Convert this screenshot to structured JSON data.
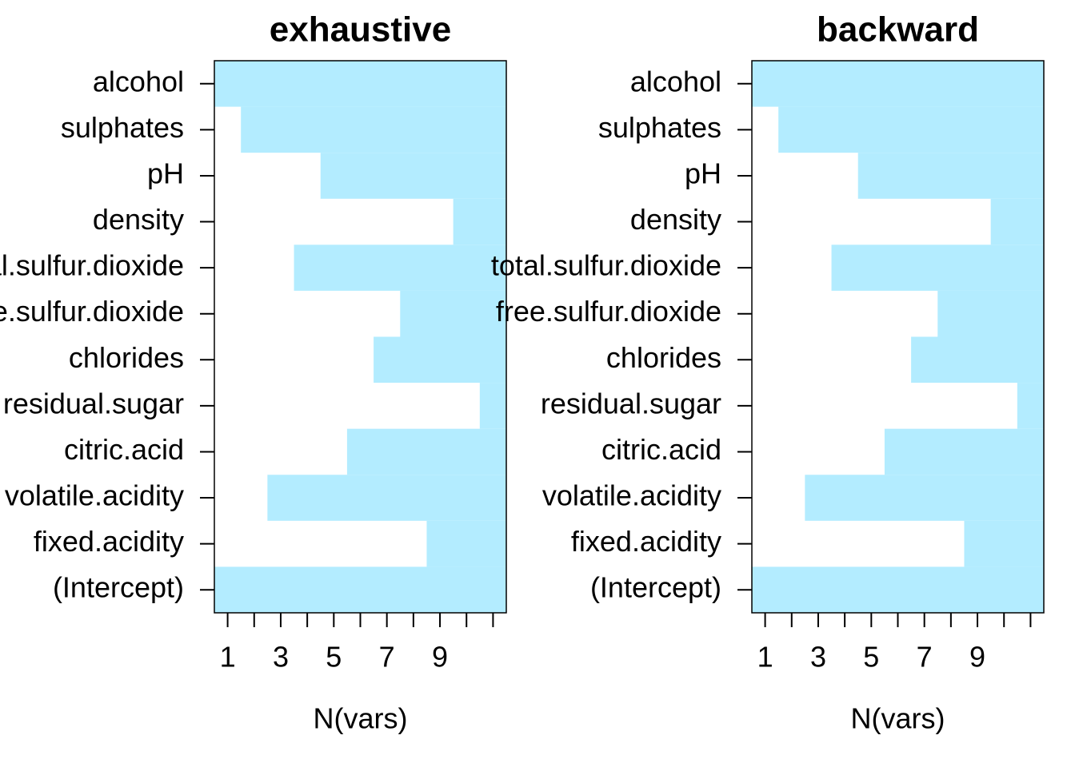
{
  "chart_data": [
    {
      "type": "bar",
      "title": "exhaustive",
      "x_label": "N(vars)",
      "color": "#b3ecff",
      "categories": [
        "alcohol",
        "sulphates",
        "pH",
        "density",
        "total.sulfur.dioxide",
        "free.sulfur.dioxide",
        "chlorides",
        "residual.sugar",
        "citric.acid",
        "volatile.acidity",
        "fixed.acidity",
        "(Intercept)"
      ],
      "values": [
        1,
        2,
        5,
        10,
        4,
        8,
        7,
        11,
        6,
        3,
        9,
        1
      ],
      "xlim": [
        0.5,
        11.5
      ],
      "xticks": [
        1,
        3,
        5,
        7,
        9
      ],
      "xminorticks": [
        2,
        4,
        6,
        8,
        10,
        11
      ]
    },
    {
      "type": "bar",
      "title": "backward",
      "x_label": "N(vars)",
      "color": "#b3ecff",
      "categories": [
        "alcohol",
        "sulphates",
        "pH",
        "density",
        "total.sulfur.dioxide",
        "free.sulfur.dioxide",
        "chlorides",
        "residual.sugar",
        "citric.acid",
        "volatile.acidity",
        "fixed.acidity",
        "(Intercept)"
      ],
      "values": [
        1,
        2,
        5,
        10,
        4,
        8,
        7,
        11,
        6,
        3,
        9,
        1
      ],
      "xlim": [
        0.5,
        11.5
      ],
      "xticks": [
        1,
        3,
        5,
        7,
        9
      ],
      "xminorticks": [
        2,
        4,
        6,
        8,
        10,
        11
      ]
    }
  ]
}
